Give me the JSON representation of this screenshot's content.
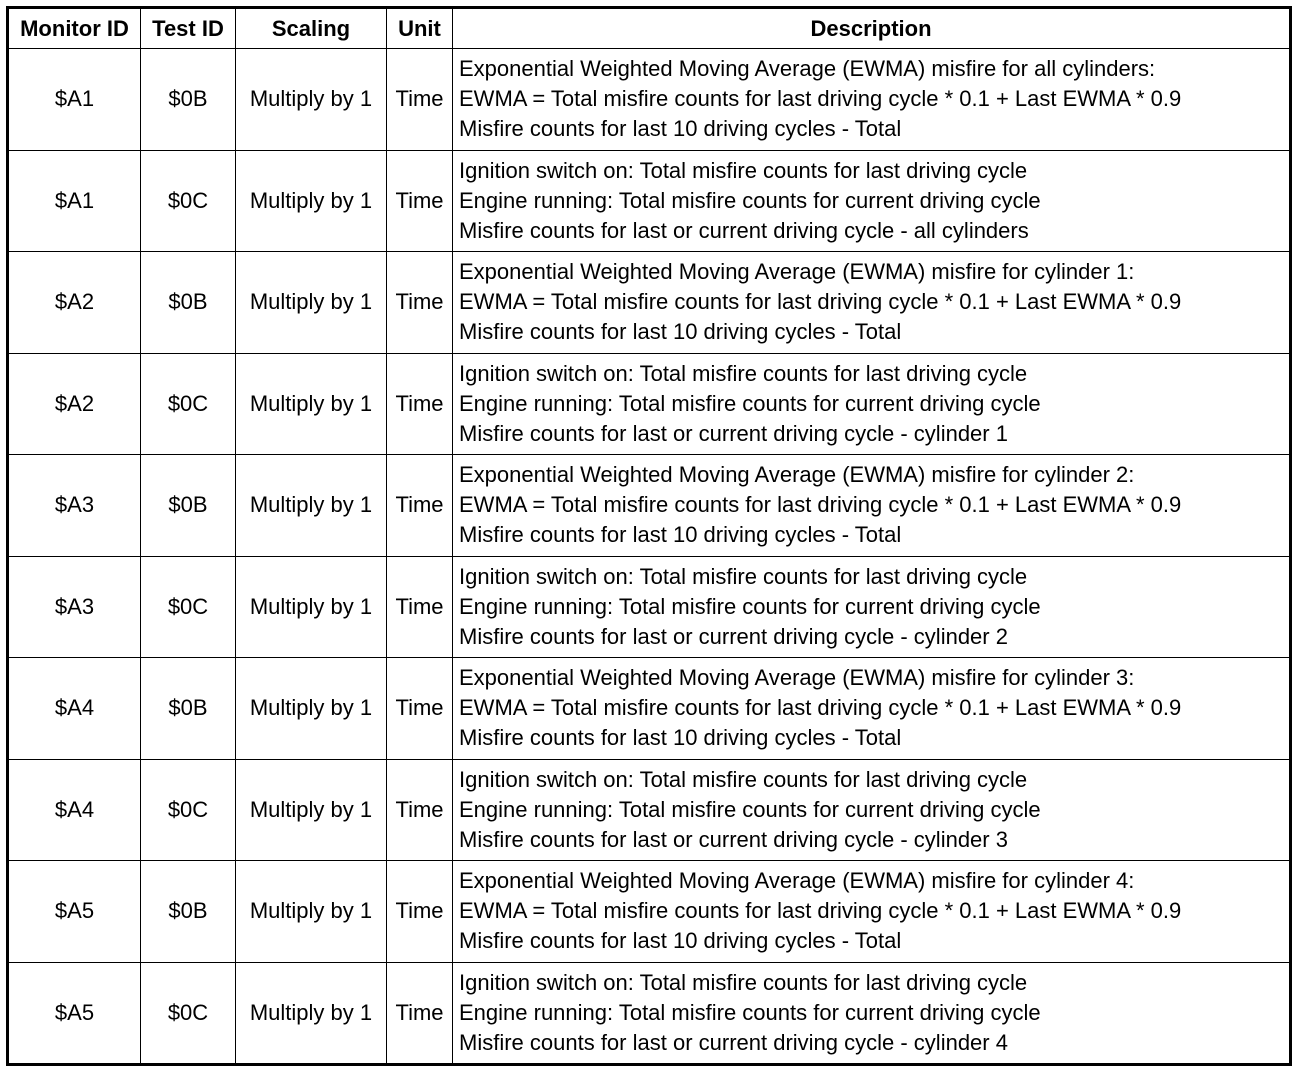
{
  "headers": [
    "Monitor ID",
    "Test ID",
    "Scaling",
    "Unit",
    "Description"
  ],
  "rows": [
    {
      "monitor_id": "$A1",
      "test_id": "$0B",
      "scaling": "Multiply by 1",
      "unit": "Time",
      "description": [
        "Exponential Weighted Moving Average (EWMA) misfire for all cylinders:",
        "EWMA = Total misfire counts for last driving cycle * 0.1 + Last EWMA * 0.9",
        "Misfire counts for last 10 driving cycles - Total"
      ]
    },
    {
      "monitor_id": "$A1",
      "test_id": "$0C",
      "scaling": "Multiply by 1",
      "unit": "Time",
      "description": [
        "Ignition switch on: Total misfire counts for last driving cycle",
        "Engine running: Total misfire counts for current driving cycle",
        "Misfire counts for last or current driving cycle - all cylinders"
      ]
    },
    {
      "monitor_id": "$A2",
      "test_id": "$0B",
      "scaling": "Multiply by 1",
      "unit": "Time",
      "description": [
        "Exponential Weighted Moving Average (EWMA) misfire for cylinder 1:",
        "EWMA = Total misfire counts for last driving cycle * 0.1 + Last EWMA * 0.9",
        "Misfire counts for last 10 driving cycles - Total"
      ]
    },
    {
      "monitor_id": "$A2",
      "test_id": "$0C",
      "scaling": "Multiply by 1",
      "unit": "Time",
      "description": [
        "Ignition switch on: Total misfire counts for last driving cycle",
        "Engine running: Total misfire counts for current driving cycle",
        "Misfire counts for last or current driving cycle - cylinder 1"
      ]
    },
    {
      "monitor_id": "$A3",
      "test_id": "$0B",
      "scaling": "Multiply by 1",
      "unit": "Time",
      "description": [
        "Exponential Weighted Moving Average (EWMA) misfire for cylinder 2:",
        "EWMA = Total misfire counts for last driving cycle * 0.1 + Last EWMA * 0.9",
        "Misfire counts for last 10 driving cycles - Total"
      ]
    },
    {
      "monitor_id": "$A3",
      "test_id": "$0C",
      "scaling": "Multiply by 1",
      "unit": "Time",
      "description": [
        "Ignition switch on: Total misfire counts for last driving cycle",
        "Engine running: Total misfire counts for current driving cycle",
        "Misfire counts for last or current driving cycle - cylinder 2"
      ]
    },
    {
      "monitor_id": "$A4",
      "test_id": "$0B",
      "scaling": "Multiply by 1",
      "unit": "Time",
      "description": [
        "Exponential Weighted Moving Average (EWMA) misfire for cylinder 3:",
        "EWMA = Total misfire counts for last driving cycle * 0.1 + Last EWMA * 0.9",
        "Misfire counts for last 10 driving cycles - Total"
      ]
    },
    {
      "monitor_id": "$A4",
      "test_id": "$0C",
      "scaling": "Multiply by 1",
      "unit": "Time",
      "description": [
        "Ignition switch on: Total misfire counts for last driving cycle",
        "Engine running: Total misfire counts for current driving cycle",
        "Misfire counts for last or current driving cycle - cylinder 3"
      ]
    },
    {
      "monitor_id": "$A5",
      "test_id": "$0B",
      "scaling": "Multiply by 1",
      "unit": "Time",
      "description": [
        "Exponential Weighted Moving Average (EWMA) misfire for cylinder 4:",
        "EWMA = Total misfire counts for last driving cycle * 0.1 + Last EWMA * 0.9",
        "Misfire counts for last 10 driving cycles - Total"
      ]
    },
    {
      "monitor_id": "$A5",
      "test_id": "$0C",
      "scaling": "Multiply by 1",
      "unit": "Time",
      "description": [
        "Ignition switch on: Total misfire counts for last driving cycle",
        "Engine running: Total misfire counts for current driving cycle",
        "Misfire counts for last or current driving cycle - cylinder 4"
      ]
    }
  ]
}
